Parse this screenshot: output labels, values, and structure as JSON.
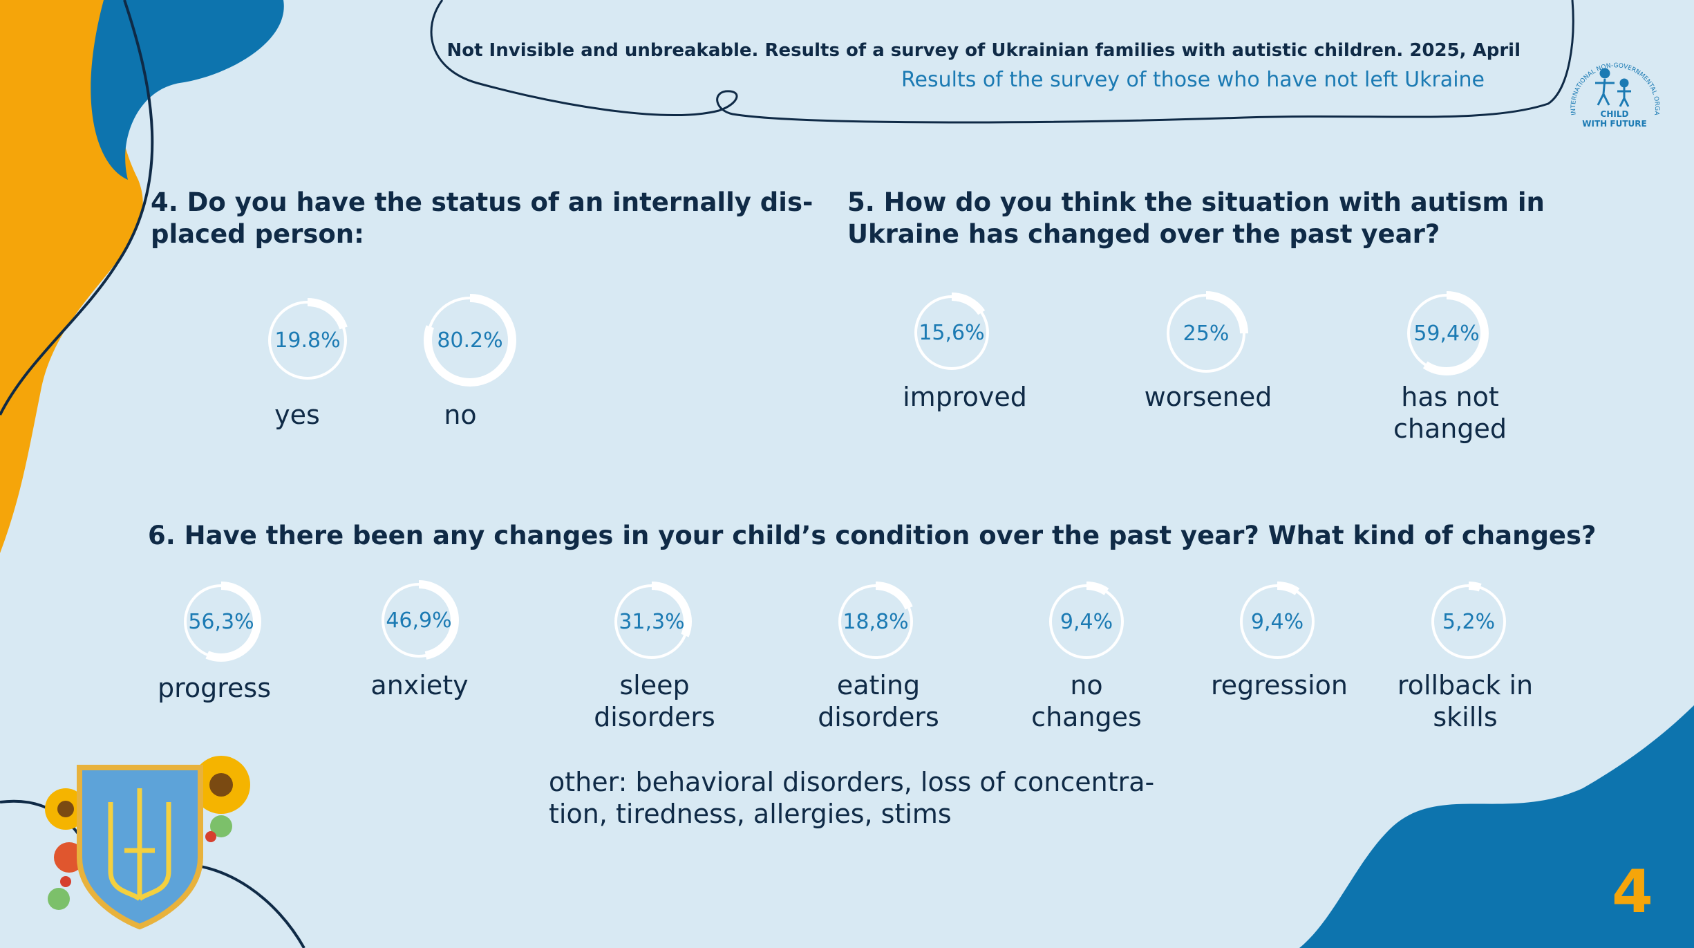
{
  "header": {
    "title": "Not Invisible and unbreakable. Results of a survey of Ukrainian families with autistic children. 2025, April",
    "subtitle": "Results of the survey of those who have not left Ukraine"
  },
  "logo": {
    "arc_text": "INTERNATIONAL NON-GOVERNMENTAL ORGANIZATION",
    "name_line1": "CHILD",
    "name_line2": "WITH FUTURE"
  },
  "colors": {
    "background": "#d8e9f3",
    "accent_blue": "#1b7ab3",
    "accent_orange": "#f5a50a",
    "text_dark": "#0f2a46",
    "ring": "#ffffff"
  },
  "chart_data": [
    {
      "type": "donut",
      "title": "4. Do you have the status of an internally displaced person:",
      "title_lines": [
        "4. Do you have the status of an internally dis-",
        "placed person:"
      ],
      "categories": [
        "yes",
        "no"
      ],
      "values": [
        19.8,
        80.2
      ],
      "value_labels": [
        "19.8%",
        "80.2%"
      ]
    },
    {
      "type": "donut",
      "title": "5. How do you think the situation with autism in Ukraine has changed over the past year?",
      "title_lines": [
        "5. How do you think the situation with autism in",
        "Ukraine has changed over the past year?"
      ],
      "categories": [
        "improved",
        "worsened",
        "has not changed"
      ],
      "label_lines": [
        [
          "improved"
        ],
        [
          "worsened"
        ],
        [
          "has not",
          "changed"
        ]
      ],
      "values": [
        15.6,
        25,
        59.4
      ],
      "value_labels": [
        "15,6%",
        "25%",
        "59,4%"
      ]
    },
    {
      "type": "donut",
      "title": "6. Have there been any changes in your child’s condition over the past year? What kind of changes?",
      "title_lines": [
        "6. Have there been any changes in your child’s condition over the past year? What kind of changes?"
      ],
      "categories": [
        "progress",
        "anxiety",
        "sleep disorders",
        "eating disorders",
        "no changes",
        "regression",
        "rollback in skills"
      ],
      "label_lines": [
        [
          "progress"
        ],
        [
          "anxiety"
        ],
        [
          "sleep",
          "disorders"
        ],
        [
          "eating",
          "disorders"
        ],
        [
          "no",
          "changes"
        ],
        [
          "regression"
        ],
        [
          "rollback in",
          "skills"
        ]
      ],
      "values": [
        56.3,
        46.9,
        31.3,
        18.8,
        9.4,
        9.4,
        5.2
      ],
      "value_labels": [
        "56,3%",
        "46,9%",
        "31,3%",
        "18,8%",
        "9,4%",
        "9,4%",
        "5,2%"
      ]
    }
  ],
  "other": {
    "lines": [
      "other: behavioral disorders, loss of concentra-",
      "tion, tiredness, allergies, stims"
    ]
  },
  "page_number": "4"
}
